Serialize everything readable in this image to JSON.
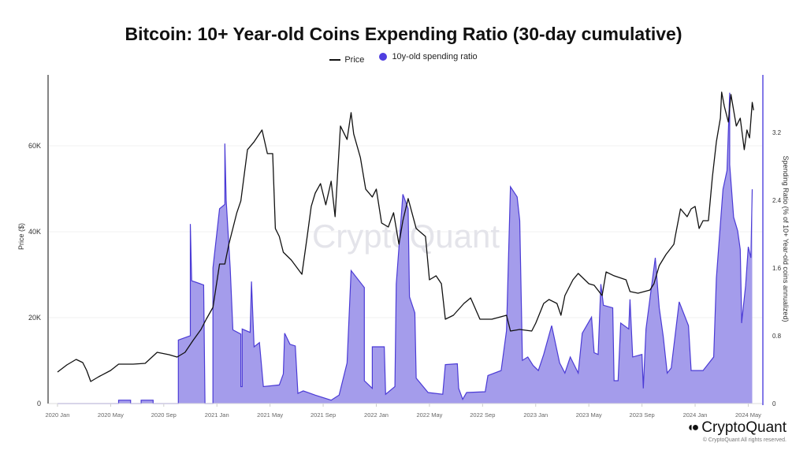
{
  "chart_data": {
    "type": "line",
    "title": "Bitcoin: 10+ Year-old Coins Expending Ratio (30-day cumulative)",
    "legend": [
      "Price",
      "10y-old spending ratio"
    ],
    "legend_position": "top-center",
    "x_unit": "months since 2020 Jan",
    "xlim": [
      -0.65,
      53.1
    ],
    "x_ticks": [
      {
        "m": 0,
        "label": "2020 Jan"
      },
      {
        "m": 4,
        "label": "2020 May"
      },
      {
        "m": 8,
        "label": "2020 Sep"
      },
      {
        "m": 12,
        "label": "2021 Jan"
      },
      {
        "m": 16,
        "label": "2021 May"
      },
      {
        "m": 20,
        "label": "2021 Sep"
      },
      {
        "m": 24,
        "label": "2022 Jan"
      },
      {
        "m": 28,
        "label": "2022 May"
      },
      {
        "m": 32,
        "label": "2022 Sep"
      },
      {
        "m": 36,
        "label": "2023 Jan"
      },
      {
        "m": 40,
        "label": "2023 May"
      },
      {
        "m": 44,
        "label": "2023 Sep"
      },
      {
        "m": 48,
        "label": "2024 Jan"
      },
      {
        "m": 52,
        "label": "2024 May"
      }
    ],
    "ylabel_left": "Price ($)",
    "ylim_left": [
      0,
      76500
    ],
    "y_ticks_left": [
      {
        "v": 0,
        "label": "0"
      },
      {
        "v": 20000,
        "label": "20K"
      },
      {
        "v": 40000,
        "label": "40K"
      },
      {
        "v": 60000,
        "label": "60K"
      }
    ],
    "ylabel_right": "Spending Ratio (% of 10+ Year-old coins annualized)",
    "ylim_right": [
      0,
      3.88
    ],
    "y_ticks_right": [
      {
        "v": 0,
        "label": "0"
      },
      {
        "v": 0.8,
        "label": "0.8"
      },
      {
        "v": 1.6,
        "label": "1.6"
      },
      {
        "v": 2.4,
        "label": "2.4"
      },
      {
        "v": 3.2,
        "label": "3.2"
      }
    ],
    "grid": true,
    "colors": {
      "price": "#111111",
      "ratio_line": "#4b3bd6",
      "ratio_fill": "#a49ceb",
      "right_axis": "#5a4de0"
    },
    "series": [
      {
        "name": "Price",
        "axis": "left",
        "type": "line",
        "points": [
          [
            0,
            7340
          ],
          [
            0.7,
            8990
          ],
          [
            1.4,
            10280
          ],
          [
            1.9,
            9540
          ],
          [
            2.2,
            7710
          ],
          [
            2.5,
            5140
          ],
          [
            3.1,
            6240
          ],
          [
            4.0,
            7710
          ],
          [
            4.6,
            9180
          ],
          [
            5.7,
            9180
          ],
          [
            6.6,
            9360
          ],
          [
            7.5,
            11930
          ],
          [
            8.4,
            11380
          ],
          [
            9.0,
            10830
          ],
          [
            9.6,
            11930
          ],
          [
            10.2,
            14680
          ],
          [
            10.8,
            17250
          ],
          [
            11.2,
            19630
          ],
          [
            11.7,
            22390
          ],
          [
            12.2,
            32480
          ],
          [
            12.6,
            32480
          ],
          [
            12.9,
            37070
          ],
          [
            13.5,
            44410
          ],
          [
            13.8,
            47160
          ],
          [
            14.3,
            59090
          ],
          [
            14.8,
            60920
          ],
          [
            15.4,
            63670
          ],
          [
            15.8,
            58170
          ],
          [
            16.2,
            58170
          ],
          [
            16.4,
            40740
          ],
          [
            16.7,
            38900
          ],
          [
            17.0,
            35230
          ],
          [
            17.6,
            33400
          ],
          [
            18.4,
            30090
          ],
          [
            18.8,
            38900
          ],
          [
            19.1,
            45880
          ],
          [
            19.4,
            48990
          ],
          [
            19.8,
            51200
          ],
          [
            20.2,
            46240
          ],
          [
            20.6,
            51750
          ],
          [
            20.9,
            43490
          ],
          [
            21.3,
            64590
          ],
          [
            21.8,
            61470
          ],
          [
            22.1,
            67710
          ],
          [
            22.3,
            62760
          ],
          [
            22.8,
            57250
          ],
          [
            23.2,
            49910
          ],
          [
            23.7,
            48080
          ],
          [
            24.0,
            49910
          ],
          [
            24.4,
            42020
          ],
          [
            24.9,
            41100
          ],
          [
            25.3,
            44410
          ],
          [
            25.7,
            37070
          ],
          [
            26.0,
            42570
          ],
          [
            26.4,
            47710
          ],
          [
            27.0,
            40740
          ],
          [
            27.7,
            38900
          ],
          [
            28.0,
            28810
          ],
          [
            28.5,
            29730
          ],
          [
            28.9,
            27890
          ],
          [
            29.2,
            19630
          ],
          [
            29.8,
            20550
          ],
          [
            30.6,
            23300
          ],
          [
            31.1,
            24590
          ],
          [
            31.8,
            19630
          ],
          [
            32.7,
            19630
          ],
          [
            33.8,
            20550
          ],
          [
            34.1,
            16880
          ],
          [
            34.8,
            17250
          ],
          [
            35.7,
            16880
          ],
          [
            36.0,
            18720
          ],
          [
            36.6,
            23300
          ],
          [
            37.0,
            24220
          ],
          [
            37.6,
            23300
          ],
          [
            37.9,
            20550
          ],
          [
            38.2,
            25140
          ],
          [
            38.8,
            28810
          ],
          [
            39.2,
            30280
          ],
          [
            40.0,
            27890
          ],
          [
            40.4,
            27530
          ],
          [
            41.0,
            25140
          ],
          [
            41.3,
            30640
          ],
          [
            41.9,
            29730
          ],
          [
            42.8,
            28810
          ],
          [
            43.1,
            26060
          ],
          [
            43.7,
            25690
          ],
          [
            44.6,
            26420
          ],
          [
            44.9,
            27890
          ],
          [
            45.3,
            32110
          ],
          [
            45.8,
            34680
          ],
          [
            46.4,
            37070
          ],
          [
            46.5,
            38900
          ],
          [
            46.9,
            45320
          ],
          [
            47.4,
            43490
          ],
          [
            47.7,
            45320
          ],
          [
            48.0,
            45880
          ],
          [
            48.3,
            40740
          ],
          [
            48.6,
            42570
          ],
          [
            49.0,
            42570
          ],
          [
            49.3,
            52660
          ],
          [
            49.6,
            60920
          ],
          [
            49.9,
            66430
          ],
          [
            50.0,
            72480
          ],
          [
            50.2,
            69180
          ],
          [
            50.5,
            65510
          ],
          [
            50.7,
            71930
          ],
          [
            51.1,
            64590
          ],
          [
            51.4,
            66430
          ],
          [
            51.7,
            59090
          ],
          [
            51.9,
            63670
          ],
          [
            52.1,
            61840
          ],
          [
            52.3,
            70100
          ],
          [
            52.4,
            68260
          ]
        ]
      },
      {
        "name": "10y-old spending ratio",
        "axis": "right",
        "type": "area",
        "points": [
          [
            0,
            0
          ],
          [
            4.6,
            0
          ],
          [
            4.6,
            0.04
          ],
          [
            5.5,
            0.04
          ],
          [
            5.5,
            0
          ],
          [
            6.3,
            0
          ],
          [
            6.3,
            0.04
          ],
          [
            7.2,
            0.04
          ],
          [
            7.2,
            0
          ],
          [
            9.1,
            0
          ],
          [
            9.1,
            0.75
          ],
          [
            10.0,
            0.8
          ],
          [
            10.0,
            2.12
          ],
          [
            10.1,
            1.45
          ],
          [
            11.0,
            1.4
          ],
          [
            11.1,
            0
          ],
          [
            11.7,
            0
          ],
          [
            11.7,
            1.6
          ],
          [
            12.2,
            2.3
          ],
          [
            12.6,
            2.35
          ],
          [
            12.6,
            3.07
          ],
          [
            12.7,
            2.4
          ],
          [
            13.0,
            1.6
          ],
          [
            13.2,
            0.87
          ],
          [
            13.8,
            0.82
          ],
          [
            13.8,
            0.2
          ],
          [
            13.9,
            0.2
          ],
          [
            13.9,
            0.88
          ],
          [
            14.5,
            0.84
          ],
          [
            14.6,
            1.44
          ],
          [
            14.8,
            0.67
          ],
          [
            15.2,
            0.72
          ],
          [
            15.5,
            0.2
          ],
          [
            16.7,
            0.22
          ],
          [
            17.0,
            0.35
          ],
          [
            17.1,
            0.83
          ],
          [
            17.5,
            0.7
          ],
          [
            17.9,
            0.68
          ],
          [
            18.1,
            0.12
          ],
          [
            18.5,
            0.15
          ],
          [
            19.4,
            0.1
          ],
          [
            20.6,
            0.04
          ],
          [
            21.2,
            0.1
          ],
          [
            21.8,
            0.48
          ],
          [
            22.1,
            1.57
          ],
          [
            23.1,
            1.37
          ],
          [
            23.1,
            0.27
          ],
          [
            23.7,
            0.18
          ],
          [
            23.7,
            0.67
          ],
          [
            24.6,
            0.67
          ],
          [
            24.7,
            0.11
          ],
          [
            25.4,
            0.2
          ],
          [
            25.5,
            1.41
          ],
          [
            26.0,
            2.47
          ],
          [
            26.4,
            2.3
          ],
          [
            26.5,
            1.26
          ],
          [
            26.9,
            1.07
          ],
          [
            27.0,
            0.3
          ],
          [
            27.9,
            0.13
          ],
          [
            29.0,
            0.11
          ],
          [
            29.2,
            0.46
          ],
          [
            30.1,
            0.47
          ],
          [
            30.2,
            0.18
          ],
          [
            30.5,
            0.05
          ],
          [
            30.8,
            0.13
          ],
          [
            32.2,
            0.14
          ],
          [
            32.4,
            0.33
          ],
          [
            33.4,
            0.39
          ],
          [
            33.8,
            0.86
          ],
          [
            34.1,
            2.56
          ],
          [
            34.6,
            2.44
          ],
          [
            34.8,
            2.16
          ],
          [
            35.0,
            0.51
          ],
          [
            35.4,
            0.55
          ],
          [
            35.8,
            0.45
          ],
          [
            36.2,
            0.39
          ],
          [
            36.6,
            0.58
          ],
          [
            37.2,
            0.92
          ],
          [
            37.8,
            0.48
          ],
          [
            38.2,
            0.36
          ],
          [
            38.6,
            0.55
          ],
          [
            39.2,
            0.36
          ],
          [
            39.5,
            0.83
          ],
          [
            40.2,
            1.02
          ],
          [
            40.4,
            0.6
          ],
          [
            40.7,
            0.58
          ],
          [
            40.9,
            1.41
          ],
          [
            41.1,
            1.16
          ],
          [
            41.8,
            1.13
          ],
          [
            41.9,
            0.27
          ],
          [
            42.2,
            0.27
          ],
          [
            42.4,
            0.95
          ],
          [
            43.0,
            0.88
          ],
          [
            43.1,
            1.23
          ],
          [
            43.3,
            0.55
          ],
          [
            44.0,
            0.58
          ],
          [
            44.1,
            0.18
          ],
          [
            44.3,
            0.88
          ],
          [
            45.0,
            1.72
          ],
          [
            45.3,
            1.13
          ],
          [
            45.6,
            0.79
          ],
          [
            45.9,
            0.36
          ],
          [
            46.2,
            0.42
          ],
          [
            46.8,
            1.2
          ],
          [
            47.5,
            0.92
          ],
          [
            47.7,
            0.39
          ],
          [
            48.6,
            0.39
          ],
          [
            49.4,
            0.55
          ],
          [
            49.6,
            1.48
          ],
          [
            50.1,
            2.53
          ],
          [
            50.4,
            2.75
          ],
          [
            50.6,
            3.67
          ],
          [
            50.6,
            2.82
          ],
          [
            50.9,
            2.2
          ],
          [
            51.2,
            2.04
          ],
          [
            51.4,
            1.82
          ],
          [
            51.5,
            1.04
          ],
          [
            51.5,
            0.95
          ],
          [
            51.8,
            1.39
          ],
          [
            52.0,
            1.85
          ],
          [
            52.2,
            1.72
          ],
          [
            52.3,
            2.53
          ]
        ]
      }
    ],
    "watermark": "CryptoQuant"
  },
  "footer": {
    "logo_text": "CryptoQuant",
    "copyright": "© CryptoQuant All rights reserved."
  }
}
